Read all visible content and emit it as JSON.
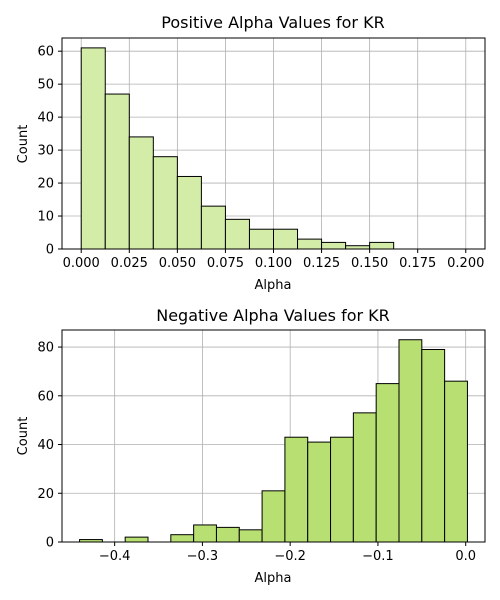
{
  "chart_data": [
    {
      "type": "bar",
      "title": "Positive Alpha Values for KR",
      "xlabel": "Alpha",
      "ylabel": "Count",
      "xlim": [
        -0.01,
        0.21
      ],
      "ylim": [
        0,
        64
      ],
      "xticks": [
        "0.000",
        "0.025",
        "0.050",
        "0.075",
        "0.100",
        "0.125",
        "0.150",
        "0.175",
        "0.200"
      ],
      "xtick_values": [
        0.0,
        0.025,
        0.05,
        0.075,
        0.1,
        0.125,
        0.15,
        0.175,
        0.2
      ],
      "yticks": [
        "0",
        "10",
        "20",
        "30",
        "40",
        "50",
        "60"
      ],
      "ytick_values": [
        0,
        10,
        20,
        30,
        40,
        50,
        60
      ],
      "bin_edges": [
        0.0,
        0.0125,
        0.025,
        0.0375,
        0.05,
        0.0625,
        0.075,
        0.0875,
        0.1,
        0.1125,
        0.125,
        0.1375,
        0.15,
        0.1625,
        0.175,
        0.1875,
        0.2
      ],
      "bin_edges_note": "",
      "bins": [
        {
          "start": 0.0,
          "end": 0.0125,
          "count": 61
        },
        {
          "start": 0.0125,
          "end": 0.025,
          "count": 47
        },
        {
          "start": 0.025,
          "end": 0.0375,
          "count": 34
        },
        {
          "start": 0.0375,
          "end": 0.05,
          "count": 28
        },
        {
          "start": 0.05,
          "end": 0.0625,
          "count": 22
        },
        {
          "start": 0.0625,
          "end": 0.075,
          "count": 13
        },
        {
          "start": 0.075,
          "end": 0.0875,
          "count": 9
        },
        {
          "start": 0.0875,
          "end": 0.1,
          "count": 6
        },
        {
          "start": 0.1,
          "end": 0.1125,
          "count": 6
        },
        {
          "start": 0.1125,
          "end": 0.125,
          "count": 3
        },
        {
          "start": 0.125,
          "end": 0.1375,
          "count": 2
        },
        {
          "start": 0.1375,
          "end": 0.15,
          "count": 1
        },
        {
          "start": 0.15,
          "end": 0.1625,
          "count": 2
        }
      ],
      "bar_color": "#d3eca8",
      "edge_color": "#000000",
      "grid": true
    },
    {
      "type": "bar",
      "title": "Negative Alpha Values for KR",
      "xlabel": "Alpha",
      "ylabel": "Count",
      "xlim": [
        -0.46,
        0.022
      ],
      "ylim": [
        0,
        87
      ],
      "xticks": [
        "−0.4",
        "−0.3",
        "−0.2",
        "−0.1",
        "0.0"
      ],
      "xtick_values": [
        -0.4,
        -0.3,
        -0.2,
        -0.1,
        0.0
      ],
      "yticks": [
        "0",
        "20",
        "40",
        "60",
        "80"
      ],
      "ytick_values": [
        0,
        20,
        40,
        60,
        80
      ],
      "bins": [
        {
          "start": -0.44,
          "end": -0.414,
          "count": 1
        },
        {
          "start": -0.414,
          "end": -0.388,
          "count": 0
        },
        {
          "start": -0.388,
          "end": -0.362,
          "count": 2
        },
        {
          "start": -0.362,
          "end": -0.336,
          "count": 0
        },
        {
          "start": -0.336,
          "end": -0.31,
          "count": 3
        },
        {
          "start": -0.31,
          "end": -0.284,
          "count": 7
        },
        {
          "start": -0.284,
          "end": -0.258,
          "count": 6
        },
        {
          "start": -0.258,
          "end": -0.232,
          "count": 5
        },
        {
          "start": -0.232,
          "end": -0.206,
          "count": 21
        },
        {
          "start": -0.206,
          "end": -0.18,
          "count": 43
        },
        {
          "start": -0.18,
          "end": -0.154,
          "count": 41
        },
        {
          "start": -0.154,
          "end": -0.128,
          "count": 43
        },
        {
          "start": -0.128,
          "end": -0.102,
          "count": 53
        },
        {
          "start": -0.102,
          "end": -0.076,
          "count": 65
        },
        {
          "start": -0.076,
          "end": -0.05,
          "count": 83
        },
        {
          "start": -0.05,
          "end": -0.024,
          "count": 79
        },
        {
          "start": -0.024,
          "end": 0.002,
          "count": 66
        }
      ],
      "bar_color": "#b8df72",
      "edge_color": "#000000",
      "grid": true
    }
  ]
}
